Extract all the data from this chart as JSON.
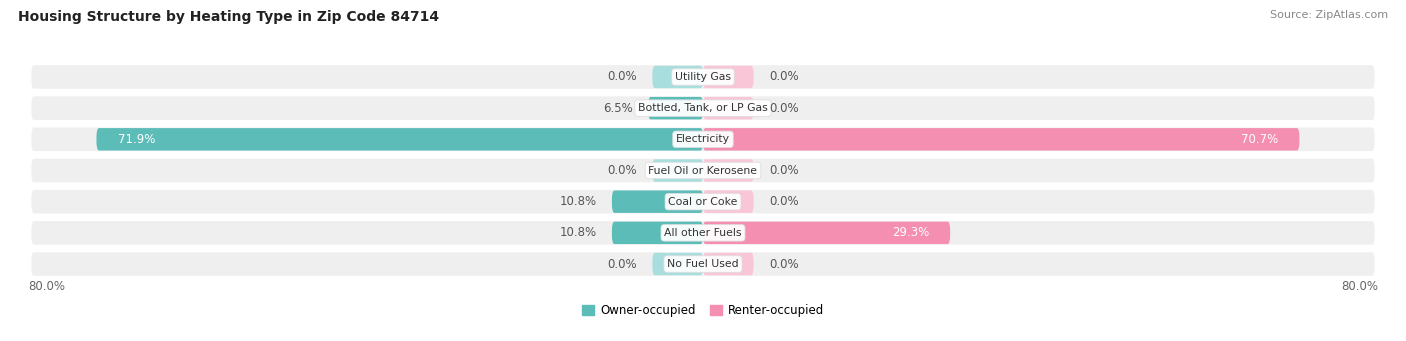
{
  "title": "Housing Structure by Heating Type in Zip Code 84714",
  "source": "Source: ZipAtlas.com",
  "categories": [
    "Utility Gas",
    "Bottled, Tank, or LP Gas",
    "Electricity",
    "Fuel Oil or Kerosene",
    "Coal or Coke",
    "All other Fuels",
    "No Fuel Used"
  ],
  "owner_values": [
    0.0,
    6.5,
    71.9,
    0.0,
    10.8,
    10.8,
    0.0
  ],
  "renter_values": [
    0.0,
    0.0,
    70.7,
    0.0,
    0.0,
    29.3,
    0.0
  ],
  "owner_color": "#5bbcb8",
  "renter_color": "#f48fb1",
  "owner_color_light": "#a8dedd",
  "renter_color_light": "#f9c6d8",
  "row_bg_color": "#efefef",
  "axis_min": -80.0,
  "axis_max": 80.0,
  "label_fontsize": 8.5,
  "title_fontsize": 10,
  "source_fontsize": 8,
  "legend_labels": [
    "Owner-occupied",
    "Renter-occupied"
  ],
  "inside_label_threshold": 15.0,
  "stub_size": 6.0
}
